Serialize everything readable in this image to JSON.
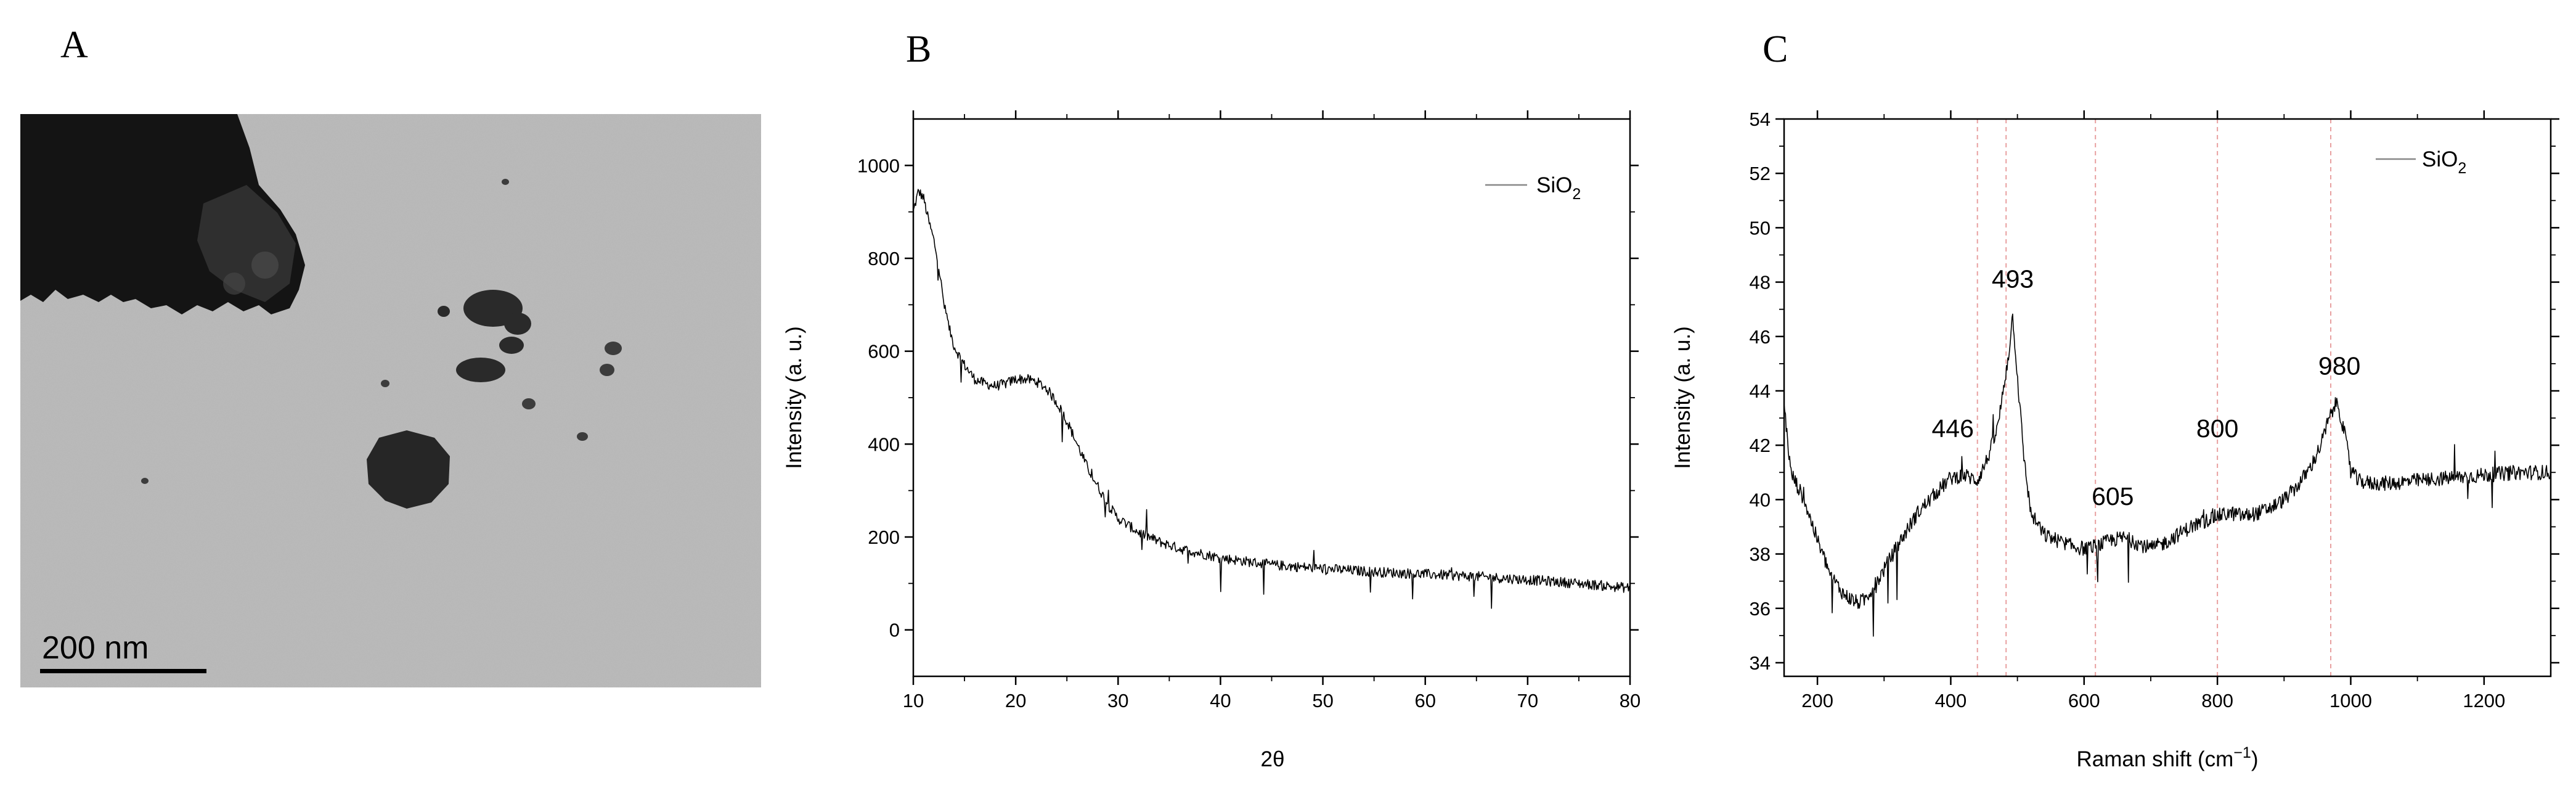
{
  "panels": {
    "a": {
      "letter": "A",
      "scale_bar_label": "200 nm"
    },
    "b": {
      "letter": "B"
    },
    "c": {
      "letter": "C"
    }
  },
  "chart_data": [
    {
      "type": "line",
      "panel": "B",
      "xlabel": "2θ",
      "ylabel": "Intensity (a. u.)",
      "xlim": [
        10,
        80
      ],
      "ylim": [
        -100,
        1100
      ],
      "xticks": [
        10,
        20,
        30,
        40,
        50,
        60,
        70,
        80
      ],
      "yticks": [
        0,
        200,
        400,
        600,
        800,
        1000
      ],
      "legend": {
        "position": "top-right",
        "label_main": "SiO",
        "label_sub": "2",
        "color": "#888888"
      },
      "grid": false,
      "series": [
        {
          "name": "SiO2",
          "color": "#000000",
          "x": [
            10,
            10.5,
            11,
            11.5,
            12,
            12.5,
            13,
            13.5,
            14,
            15,
            16,
            17,
            18,
            19,
            20,
            21,
            22,
            23,
            24,
            25,
            26,
            27,
            28,
            29,
            30,
            32,
            34,
            36,
            38,
            40,
            45,
            50,
            55,
            60,
            65,
            70,
            75,
            80
          ],
          "values": [
            900,
            945,
            930,
            880,
            840,
            780,
            700,
            650,
            610,
            570,
            540,
            530,
            525,
            530,
            540,
            540,
            535,
            520,
            490,
            450,
            400,
            350,
            310,
            270,
            240,
            210,
            190,
            175,
            165,
            155,
            140,
            132,
            125,
            120,
            115,
            108,
            100,
            90
          ]
        }
      ]
    },
    {
      "type": "line",
      "panel": "C",
      "xlabel_main": "Raman shift (cm",
      "xlabel_sup": "−1",
      "xlabel_end": ")",
      "ylabel": "Intensity (a. u.)",
      "xlim": [
        150,
        1300
      ],
      "ylim": [
        33.5,
        54
      ],
      "xticks": [
        200,
        400,
        600,
        800,
        1000,
        1200
      ],
      "yticks": [
        34,
        36,
        38,
        40,
        42,
        44,
        46,
        48,
        50,
        52,
        54
      ],
      "legend": {
        "position": "top-right",
        "label_main": "SiO",
        "label_sub": "2",
        "color": "#888888"
      },
      "grid": false,
      "reference_lines": [
        440,
        483,
        617,
        800,
        970
      ],
      "reference_line_color": "#e8a0a0",
      "annotations": [
        {
          "text": "493",
          "x": 493,
          "y": 47.8
        },
        {
          "text": "446",
          "x": 403,
          "y": 42.3
        },
        {
          "text": "605",
          "x": 643,
          "y": 39.8
        },
        {
          "text": "800",
          "x": 800,
          "y": 42.3
        },
        {
          "text": "980",
          "x": 983,
          "y": 44.6
        }
      ],
      "series": [
        {
          "name": "SiO2",
          "color": "#000000",
          "x": [
            150,
            160,
            180,
            200,
            220,
            240,
            260,
            270,
            290,
            320,
            350,
            380,
            400,
            420,
            440,
            455,
            470,
            480,
            487,
            493,
            500,
            510,
            520,
            540,
            560,
            580,
            600,
            620,
            640,
            660,
            680,
            700,
            720,
            740,
            760,
            780,
            800,
            820,
            840,
            860,
            880,
            900,
            920,
            940,
            955,
            965,
            975,
            980,
            990,
            1000,
            1010,
            1030,
            1060,
            1100,
            1150,
            1200,
            1250,
            1300
          ],
          "values": [
            43.5,
            41,
            40,
            38.5,
            37.2,
            36.5,
            36.2,
            36.3,
            37,
            38.3,
            39.5,
            40.3,
            40.8,
            40.9,
            40.7,
            41.5,
            42.6,
            44.2,
            45.4,
            46.8,
            44.5,
            41.5,
            39.5,
            38.7,
            38.5,
            38.3,
            38.2,
            38.3,
            38.5,
            38.6,
            38.4,
            38.2,
            38.4,
            38.7,
            39,
            39.2,
            39.4,
            39.5,
            39.4,
            39.5,
            39.7,
            40,
            40.5,
            41.2,
            42,
            42.8,
            43.4,
            43.6,
            42.5,
            41.2,
            40.7,
            40.6,
            40.6,
            40.7,
            40.8,
            40.9,
            41,
            41
          ]
        }
      ]
    }
  ]
}
